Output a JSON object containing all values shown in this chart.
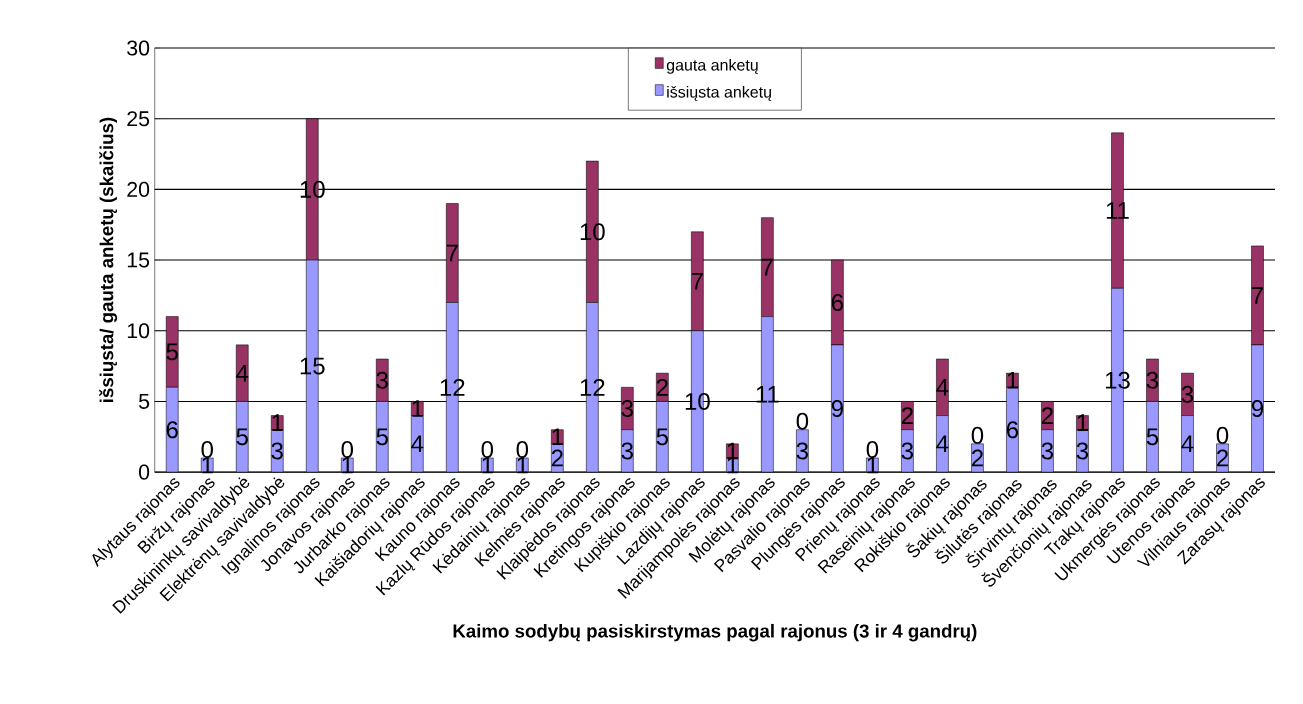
{
  "chart_data": {
    "type": "bar",
    "stacked": true,
    "xlabel": "Kaimo sodybų pasiskirstymas pagal rajonus (3 ir 4 gandrų)",
    "ylabel": "išsiųsta/ gauta anketų (skaičius)",
    "categories": [
      "Alytaus rajonas",
      "Biržų rajonas",
      "Druskininkų savivaldybė",
      "Elektrėnų savivaldybė",
      "Ignalinos rajonas",
      "Jonavos rajonas",
      "Jurbarko rajonas",
      "Kaišiadorių rajonas",
      "Kauno rajonas",
      "Kazlų Rūdos rajonas",
      "Kėdainių rajonas",
      "Kelmės rajonas",
      "Klaipėdos rajonas",
      "Kretingos rajonas",
      "Kupiškio rajonas",
      "Lazdijų rajonas",
      "Marijampolės rajonas",
      "Molėtų rajonas",
      "Pasvalio rajonas",
      "Plungės rajonas",
      "Prienų rajonas",
      "Raseinių rajonas",
      "Rokiškio rajonas",
      "Šakių rajonas",
      "Šilutės rajonas",
      "Širvintų rajonas",
      "Švenčionių rajonas",
      "Trakų rajonas",
      "Ukmergės rajonas",
      "Utenos rajonas",
      "Vilniaus rajonas",
      "Zarasų rajonas"
    ],
    "series": [
      {
        "name": "išsiųsta anketų",
        "color": "#9999ff",
        "values": [
          6,
          1,
          5,
          3,
          15,
          1,
          5,
          4,
          12,
          1,
          1,
          2,
          12,
          3,
          5,
          10,
          1,
          11,
          3,
          9,
          1,
          3,
          4,
          2,
          6,
          3,
          3,
          13,
          5,
          4,
          2,
          9
        ]
      },
      {
        "name": "gauta anketų",
        "color": "#993366",
        "values": [
          5,
          0,
          4,
          1,
          10,
          0,
          3,
          1,
          7,
          0,
          0,
          1,
          10,
          3,
          2,
          7,
          1,
          7,
          0,
          6,
          0,
          2,
          4,
          0,
          1,
          2,
          1,
          11,
          3,
          3,
          0,
          7
        ]
      }
    ],
    "ylim": [
      0,
      30
    ],
    "yticks": [
      0,
      5,
      10,
      15,
      20,
      25,
      30
    ],
    "grid": "y",
    "legend": "top",
    "data_labels": true
  }
}
